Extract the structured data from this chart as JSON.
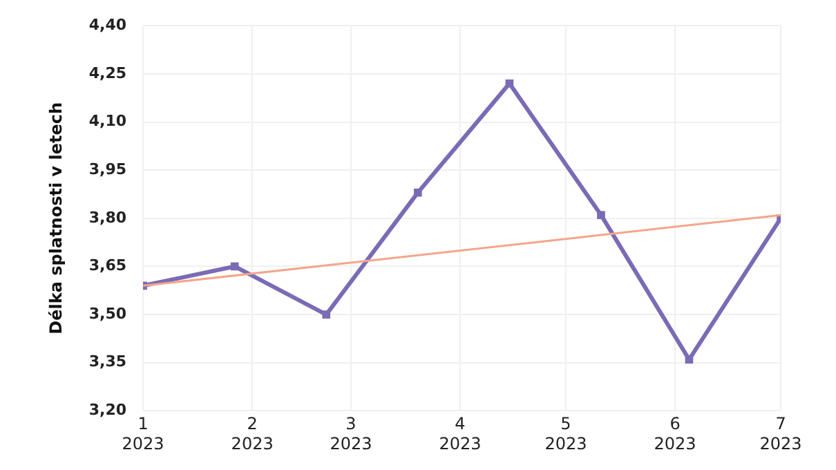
{
  "chart_data": {
    "type": "line",
    "ylabel": "Délka splatnosti v letech",
    "x": [
      "2023-01-01",
      "2023-01-27",
      "2023-02-22",
      "2023-03-20",
      "2023-04-15",
      "2023-05-11",
      "2023-06-05",
      "2023-07-01"
    ],
    "series": [
      {
        "color": "#7b6bb5",
        "values": [
          3.59,
          3.65,
          3.5,
          3.88,
          4.22,
          3.81,
          3.36,
          3.8
        ]
      },
      {
        "type": "line",
        "color": "#f4a58a",
        "x": [
          "2023-01-01",
          "2023-07-01"
        ],
        "values": [
          3.59,
          3.81
        ],
        "marker": "none"
      }
    ],
    "xlim": [
      "2023-01-01",
      "2023-07-01"
    ],
    "xticks": [
      {
        "value": "2023-01-01",
        "label": "1\n2023"
      },
      {
        "value": "2023-02-01",
        "label": "2\n2023"
      },
      {
        "value": "2023-03-01",
        "label": "3\n2023"
      },
      {
        "value": "2023-04-01",
        "label": "4\n2023"
      },
      {
        "value": "2023-05-01",
        "label": "5\n2023"
      },
      {
        "value": "2023-06-01",
        "label": "6\n2023"
      },
      {
        "value": "2023-07-01",
        "label": "7\n2023"
      }
    ],
    "ylim": [
      3.2,
      4.4
    ],
    "yticks": [
      {
        "value": 3.2,
        "label": "3,20"
      },
      {
        "value": 3.35,
        "label": "3,35"
      },
      {
        "value": 3.5,
        "label": "3,50"
      },
      {
        "value": 3.65,
        "label": "3,65"
      },
      {
        "value": 3.8,
        "label": "3,80"
      },
      {
        "value": 3.95,
        "label": "3,95"
      },
      {
        "value": 4.1,
        "label": "4,10"
      },
      {
        "value": 4.25,
        "label": "4,25"
      },
      {
        "value": 4.4,
        "label": "4,40"
      }
    ],
    "grid": true,
    "legend": false,
    "marker": "square"
  }
}
